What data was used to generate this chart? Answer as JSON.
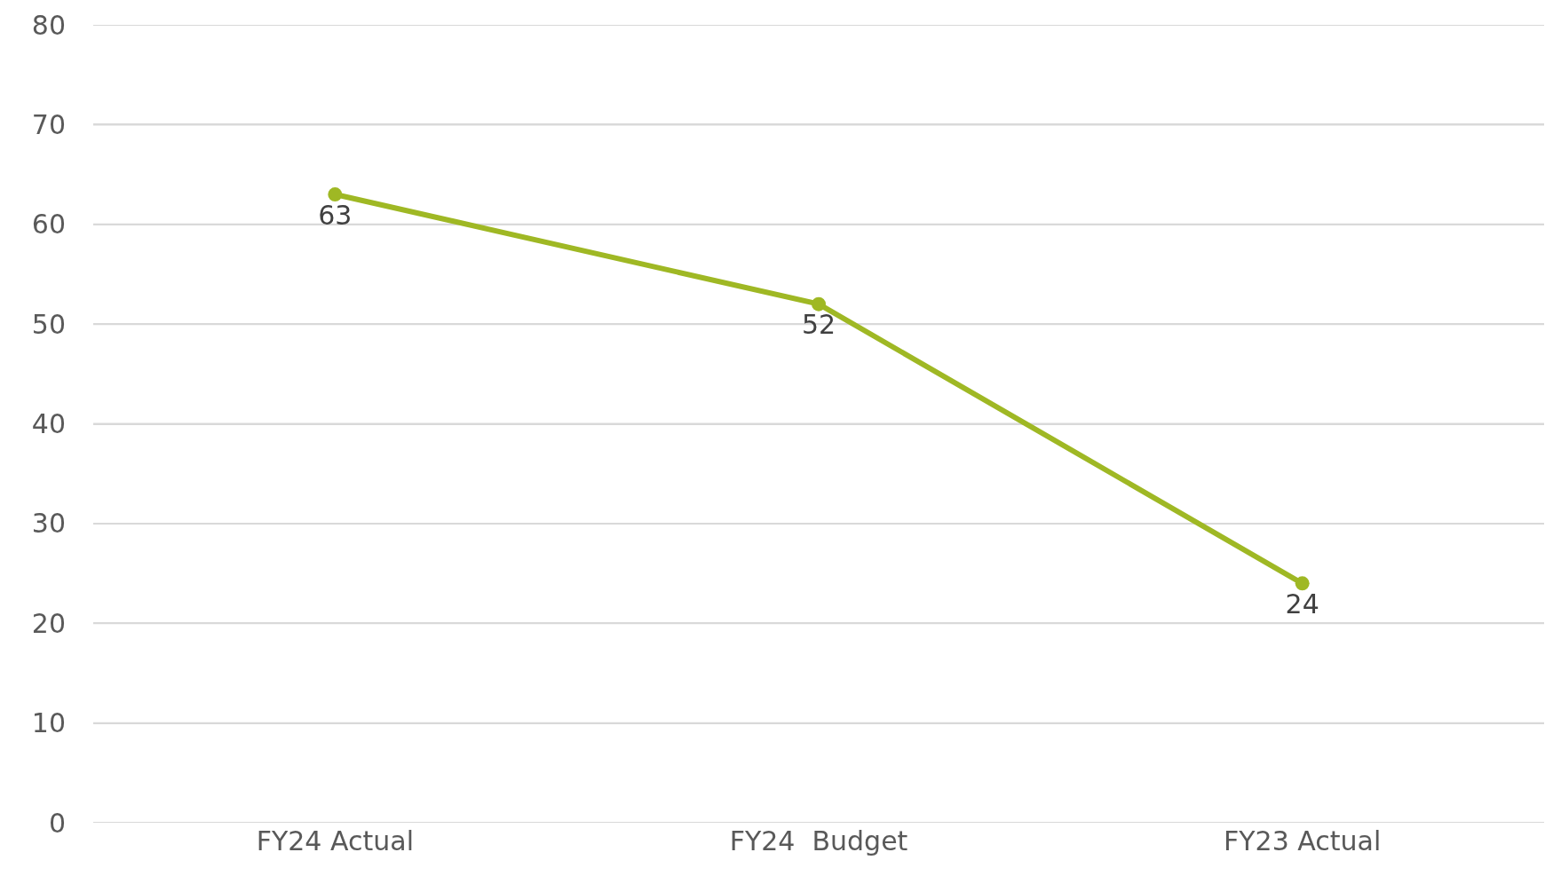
{
  "chart_data": {
    "type": "line",
    "categories": [
      "FY24 Actual",
      "FY24  Budget",
      "FY23 Actual"
    ],
    "series": [
      {
        "color": "#9fb824",
        "values": [
          63,
          52,
          24
        ]
      }
    ],
    "ylim": [
      0,
      80
    ],
    "yticks": [
      0,
      10,
      20,
      30,
      40,
      50,
      60,
      70,
      80
    ],
    "grid": "y",
    "marker": "circle",
    "line_style": "solid",
    "data_labels": true
  }
}
